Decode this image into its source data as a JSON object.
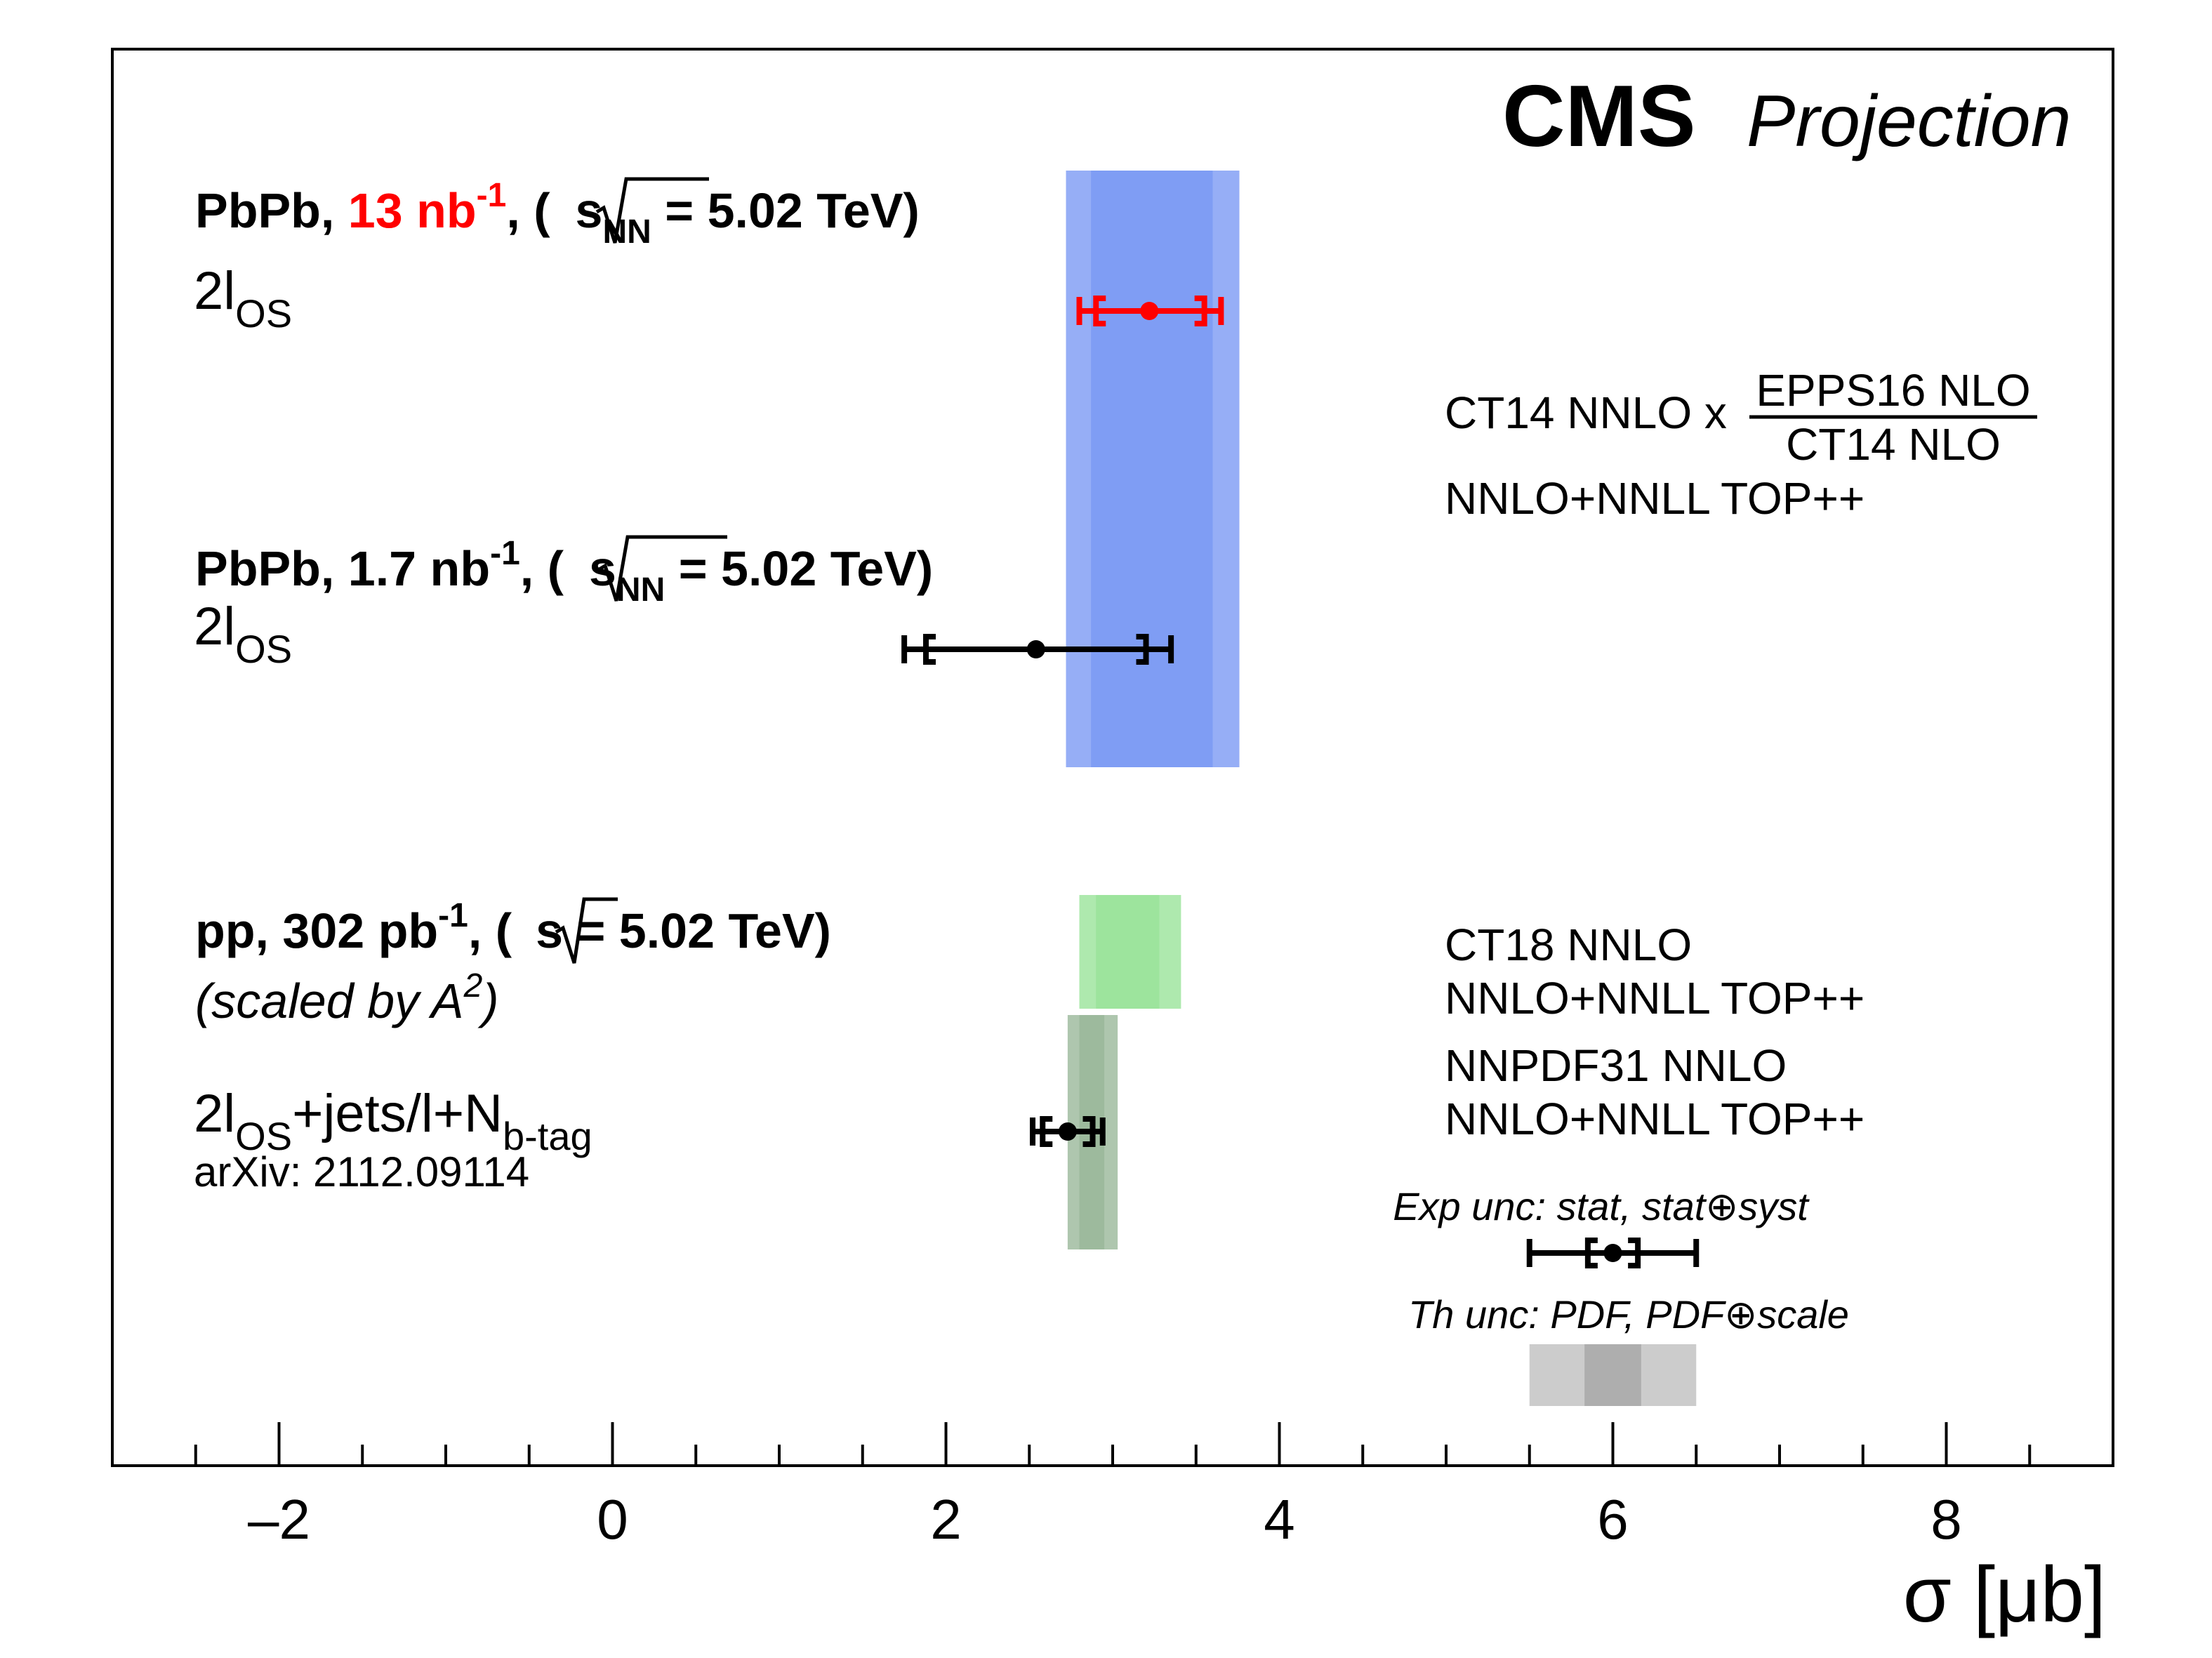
{
  "chart_data": {
    "type": "scatter",
    "title": "",
    "xlabel": "σ [μb]",
    "ylabel": "",
    "xlim": [
      -3.0,
      9.0
    ],
    "xticks": [
      {
        "value": -2,
        "label": "–2"
      },
      {
        "value": 0,
        "label": "0"
      },
      {
        "value": 2,
        "label": "2"
      },
      {
        "value": 4,
        "label": "4"
      },
      {
        "value": 6,
        "label": "6"
      },
      {
        "value": 8,
        "label": "8"
      }
    ],
    "grid": false,
    "brand": {
      "cms": "CMS",
      "projection": "Projection"
    },
    "measurements": [
      {
        "name": "PbPb 13 nb-1",
        "label_prefix": "PbPb, ",
        "label_lumi": "13 nb",
        "label_exp": "-1",
        "label_mid": ", (",
        "sqrt_s": "s",
        "sqrt_sub": "NN",
        "label_energy": " = 5.02 TeV)",
        "channel": "2l",
        "channel_sub": "OS",
        "color": "#ff0000",
        "value": 3.22,
        "stat_low": 2.9,
        "stat_high": 3.55,
        "tot_low": 2.8,
        "tot_high": 3.65
      },
      {
        "name": "PbPb 1.7 nb-1",
        "label_prefix": "PbPb, ",
        "label_lumi": "1.7 nb",
        "label_exp": "-1",
        "label_mid": ", (",
        "sqrt_s": "s",
        "sqrt_sub": "NN",
        "label_energy": " = 5.02 TeV)",
        "channel": "2l",
        "channel_sub": "OS",
        "color": "#000000",
        "value": 2.54,
        "stat_low": 1.88,
        "stat_high": 3.2,
        "tot_low": 1.75,
        "tot_high": 3.35
      },
      {
        "name": "pp 302 pb-1",
        "label_prefix": "pp, 302 pb",
        "label_exp": "-1",
        "label_mid": ", (",
        "sqrt_s": "s",
        "label_energy": " = 5.02 TeV)",
        "note_prefix": "(scaled by A",
        "note_exp": "2",
        "note_suffix": ")",
        "channel": "2l",
        "channel_sub": "OS",
        "channel_rest": "+jets/l+N",
        "channel_rest_sub": "b-tag",
        "reference": "arXiv: 2112.09114",
        "color": "#000000",
        "value": 2.73,
        "stat_low": 2.58,
        "stat_high": 2.88,
        "tot_low": 2.52,
        "tot_high": 2.94
      }
    ],
    "theory_bands": [
      {
        "name": "CT14 NNLO x EPPS16 NLO / CT14 NLO",
        "label_main": "CT14 NNLO x ",
        "label_num": "EPPS16 NLO",
        "label_den": "CT14 NLO",
        "label_line2": "NNLO+NNLL TOP++",
        "color": "#6d8ff2",
        "pdf_low": 2.87,
        "pdf_high": 3.6,
        "total_low": 2.72,
        "total_high": 3.76
      },
      {
        "name": "CT18 NNLO",
        "label_line1": "CT18 NNLO",
        "label_line2": "NNLO+NNLL TOP++",
        "color": "#8fe08f",
        "pdf_low": 2.9,
        "pdf_high": 3.28,
        "total_low": 2.8,
        "total_high": 3.41
      },
      {
        "name": "NNPDF31 NNLO",
        "label_line1": "NNPDF31 NNLO",
        "label_line2": "NNLO+NNLL TOP++",
        "color": "#8fb08f",
        "pdf_low": 2.8,
        "pdf_high": 2.95,
        "total_low": 2.73,
        "total_high": 3.03
      }
    ],
    "legend": {
      "placement": "bottom-right",
      "exp_label": "Exp unc: stat, stat⊕syst",
      "th_label": "Th unc: PDF, PDF⊕scale",
      "exp_example": {
        "value": 6.0,
        "stat_low": 5.85,
        "stat_high": 6.15,
        "tot_low": 5.5,
        "tot_high": 6.5
      },
      "th_example": {
        "pdf_low": 5.83,
        "pdf_high": 6.17,
        "total_low": 5.5,
        "total_high": 6.5
      },
      "exp_color": "#000000",
      "th_color": "#bbbbbb"
    }
  }
}
